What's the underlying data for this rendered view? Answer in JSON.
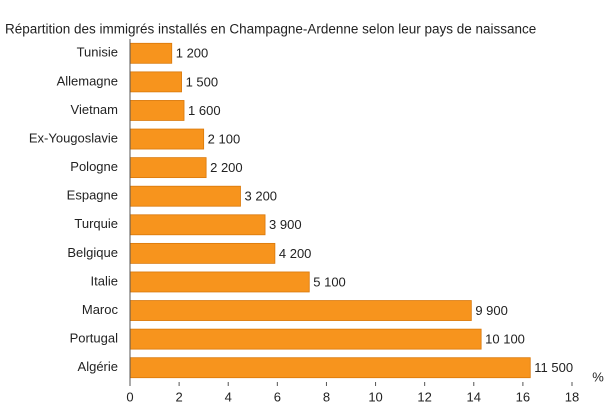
{
  "chart_data": {
    "type": "barh",
    "title": "Répartition des immigrés installés en Champagne-Ardenne selon leur pays de naissance",
    "categories": [
      "Tunisie",
      "Allemagne",
      "Vietnam",
      "Ex-Yougoslavie",
      "Pologne",
      "Espagne",
      "Turquie",
      "Belgique",
      "Italie",
      "Maroc",
      "Portugal",
      "Algérie"
    ],
    "values": [
      1.7,
      2.1,
      2.2,
      3.0,
      3.1,
      4.5,
      5.5,
      5.9,
      7.3,
      13.9,
      14.3,
      16.3
    ],
    "count_labels": [
      "1 200",
      "1 500",
      "1 600",
      "2 100",
      "2 200",
      "3 200",
      "3 900",
      "4 200",
      "5 100",
      "9 900",
      "10 100",
      "11 500"
    ],
    "color": "#f7941d",
    "xlim": [
      0,
      18
    ],
    "xticks": [
      0,
      2,
      4,
      6,
      8,
      10,
      12,
      14,
      16,
      18
    ],
    "xlabel": "%"
  }
}
